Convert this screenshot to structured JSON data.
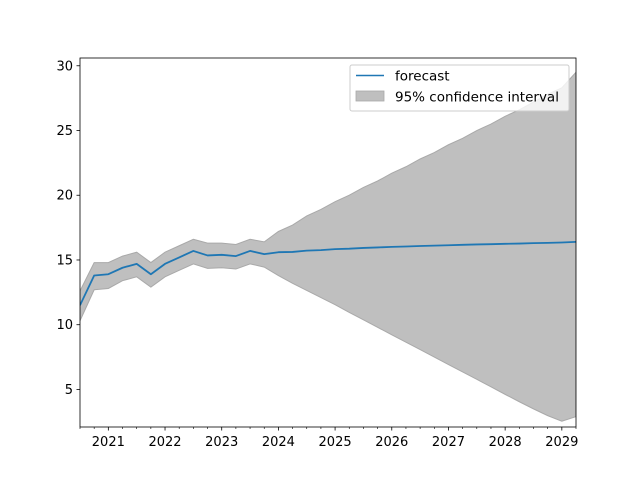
{
  "chart_data": {
    "type": "line",
    "title": "",
    "xlabel": "",
    "ylabel": "",
    "x_unit": "year",
    "xlim": [
      2020.5,
      2029.25
    ],
    "ylim": [
      2.1,
      30.6
    ],
    "x_ticks": [
      2021,
      2022,
      2023,
      2024,
      2025,
      2026,
      2027,
      2028,
      2029
    ],
    "x_tick_labels": [
      "2021",
      "2022",
      "2023",
      "2024",
      "2025",
      "2026",
      "2027",
      "2028",
      "2029"
    ],
    "x_minor_ticks_per_year": 4,
    "y_ticks": [
      5,
      10,
      15,
      20,
      25,
      30
    ],
    "y_tick_labels": [
      "5",
      "10",
      "15",
      "20",
      "25",
      "30"
    ],
    "grid": false,
    "legend": {
      "position": "top-right",
      "entries": [
        "forecast",
        "95% confidence interval"
      ]
    },
    "colors": {
      "forecast": "#1f77b4",
      "interval_fill": "#bfbfbf",
      "interval_edge": "#a9a9a9"
    },
    "x": [
      2020.5,
      2020.75,
      2021.0,
      2021.25,
      2021.5,
      2021.75,
      2022.0,
      2022.25,
      2022.5,
      2022.75,
      2023.0,
      2023.25,
      2023.5,
      2023.75,
      2024.0,
      2024.25,
      2024.5,
      2024.75,
      2025.0,
      2025.25,
      2025.5,
      2025.75,
      2026.0,
      2026.25,
      2026.5,
      2026.75,
      2027.0,
      2027.25,
      2027.5,
      2027.75,
      2028.0,
      2028.25,
      2028.5,
      2028.75,
      2029.0,
      2029.25
    ],
    "series": [
      {
        "name": "forecast",
        "values": [
          11.5,
          13.8,
          13.9,
          14.4,
          14.7,
          13.9,
          14.7,
          15.2,
          15.7,
          15.35,
          15.4,
          15.3,
          15.7,
          15.45,
          15.6,
          15.62,
          15.72,
          15.76,
          15.84,
          15.87,
          15.93,
          15.97,
          16.01,
          16.04,
          16.08,
          16.11,
          16.14,
          16.17,
          16.2,
          16.22,
          16.25,
          16.27,
          16.3,
          16.32,
          16.35,
          16.4
        ]
      }
    ],
    "interval": {
      "name": "95% confidence interval",
      "lower": [
        10.3,
        12.7,
        12.8,
        13.4,
        13.7,
        12.9,
        13.7,
        14.2,
        14.7,
        14.35,
        14.4,
        14.3,
        14.7,
        14.45,
        13.8,
        13.2,
        12.65,
        12.1,
        11.55,
        10.95,
        10.38,
        9.8,
        9.22,
        8.65,
        8.08,
        7.5,
        6.92,
        6.35,
        5.78,
        5.2,
        4.62,
        4.05,
        3.5,
        2.98,
        2.55,
        2.9
      ],
      "upper": [
        12.6,
        14.8,
        14.8,
        15.3,
        15.6,
        14.8,
        15.6,
        16.1,
        16.6,
        16.3,
        16.3,
        16.2,
        16.6,
        16.4,
        17.2,
        17.7,
        18.4,
        18.9,
        19.5,
        20.0,
        20.6,
        21.1,
        21.7,
        22.2,
        22.8,
        23.3,
        23.9,
        24.4,
        25.0,
        25.5,
        26.1,
        26.6,
        27.2,
        27.8,
        28.3,
        29.5
      ]
    }
  }
}
